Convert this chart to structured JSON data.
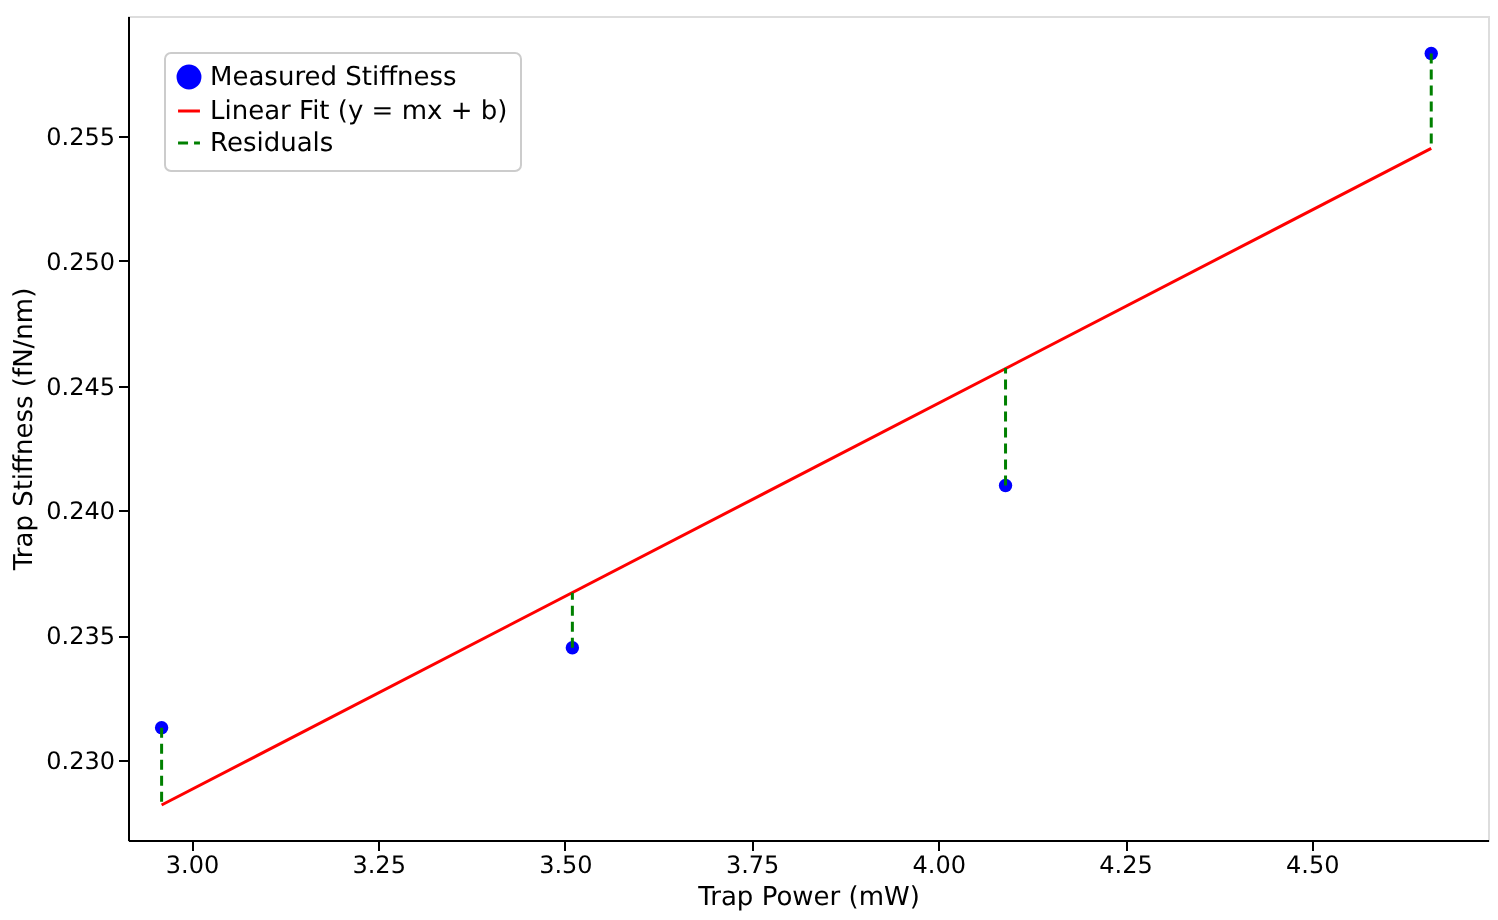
{
  "chart_data": {
    "type": "scatter",
    "xlabel": "Trap Power (mW)",
    "ylabel": "Trap Stiffness (fN/nm)",
    "xlim": [
      2.915,
      4.736
    ],
    "xticks": [
      {
        "value": 3,
        "label": "3.00"
      },
      3.25,
      {
        "value": 3.5,
        "label": "3.50"
      },
      3.75,
      {
        "value": 4,
        "label": "4.00"
      },
      4.25,
      {
        "value": 4.5,
        "label": "4.50"
      }
    ],
    "ylim": [
      0.2268,
      0.2598
    ],
    "yticks": [
      {
        "value": 0.23,
        "label": "0.230"
      },
      0.235,
      {
        "value": 0.24,
        "label": "0.240"
      },
      0.245,
      {
        "value": 0.25,
        "label": "0.250"
      },
      0.255
    ],
    "grid": false,
    "legend": "top left",
    "series": [
      {
        "name": "Measured Stiffness",
        "marker": "circle",
        "color": "#0000ff",
        "x": [
          2.96,
          3.51,
          4.09,
          4.66
        ],
        "values": [
          0.2313,
          0.2345,
          0.241,
          0.2583
        ]
      },
      {
        "name": "Linear Fit (y = mx + b)",
        "type": "line",
        "line_style": "solid",
        "color": "#ff0000",
        "x": [
          2.96,
          4.66
        ],
        "values": [
          0.2282,
          0.2545
        ]
      },
      {
        "name": "Residuals",
        "type": "line",
        "line_style": "dashed",
        "color": "#008000",
        "x": [
          2.96,
          2.96,
          3.51,
          3.51,
          4.09,
          4.09,
          4.66,
          4.66
        ],
        "values": [
          0.2313,
          0.2282,
          0.2345,
          0.2367,
          0.241,
          0.2457,
          0.2583,
          0.2545
        ]
      }
    ]
  }
}
